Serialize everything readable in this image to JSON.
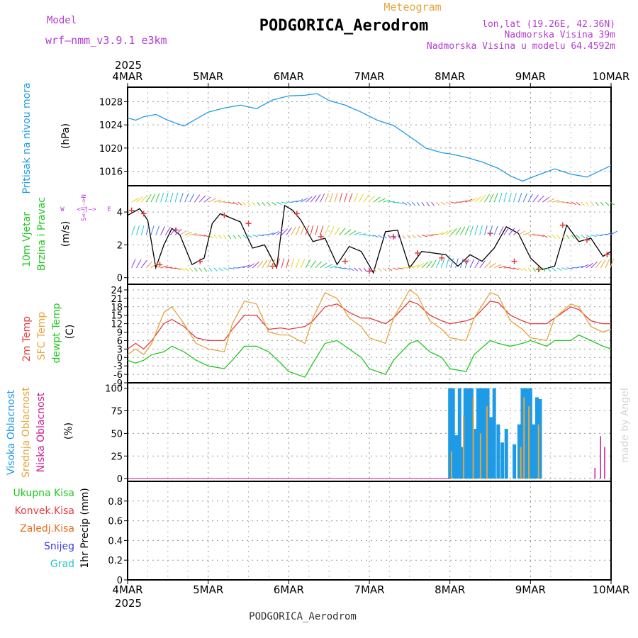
{
  "header": {
    "model_label": "Model",
    "model_name": "wrf–nmm_v3.9.1 e3km",
    "product": "Meteogram",
    "station": "PODGORICA_Aerodrom",
    "lonlat": "lon,lat (19.26E, 42.36N)",
    "elevation": "Nadmorska Visina 39m",
    "model_elevation": "Nadmorska Visina u modelu 64.4592m",
    "year_top": "2025",
    "year_bottom": "2025",
    "footer_station": "PODGORICA_Aerodrom",
    "credit": "made by Angel"
  },
  "colors": {
    "pressure": "#1e9be6",
    "wind_label": "#1ec81e",
    "temp2m": "#e63c3c",
    "sfc": "#e6a53c",
    "dewpt": "#1ec81e",
    "cloud_high": "#1e9be6",
    "cloud_mid": "#e6a53c",
    "cloud_low": "#c81e8c",
    "purple": "#b43cd2",
    "precip_total": "#1ec81e",
    "precip_conv": "#e63c3c",
    "precip_frz": "#e66e1e",
    "precip_snow": "#3c3ce6",
    "precip_grad": "#1ec8c8"
  },
  "panel_labels": {
    "pressure": [
      "Pritisak na nivou mora",
      "(hPa)"
    ],
    "wind": [
      "10m Vjetar",
      "Brzina i Pravac",
      "(m/s)"
    ],
    "temp": [
      "2m Temp",
      "SFC Temp",
      "dewpt Temp",
      "(C)"
    ],
    "cloud": [
      "Visoka Oblacnost",
      "Srednja Oblacnost",
      "Niska Oblacnost",
      "(%)"
    ],
    "precip": [
      "Ukupna Kisa",
      "Konvek.Kisa",
      "Zaledj.Kisa",
      "Snijeg",
      "Grad",
      "1hr Precip (mm)"
    ],
    "compass": [
      "W",
      "<–|–>",
      "E",
      "S<–|–>N"
    ]
  },
  "chart_data": [
    {
      "type": "line",
      "title": "Pritisak na nivou mora",
      "ylabel": "(hPa)",
      "x_categories": [
        "4MAR",
        "5MAR",
        "6MAR",
        "7MAR",
        "8MAR",
        "9MAR",
        "10MAR"
      ],
      "yticks": [
        1016,
        1020,
        1024,
        1028
      ],
      "ylim": [
        1013.5,
        1030.5
      ],
      "series": [
        {
          "name": "MSLP",
          "x": [
            0,
            0.1,
            0.2,
            0.35,
            0.5,
            0.7,
            0.9,
            1.0,
            1.2,
            1.4,
            1.6,
            1.8,
            2.0,
            2.2,
            2.35,
            2.5,
            2.7,
            2.9,
            3.1,
            3.3,
            3.5,
            3.7,
            3.9,
            4.0,
            4.2,
            4.4,
            4.6,
            4.75,
            4.9,
            5.1,
            5.3,
            5.5,
            5.7,
            5.9,
            6.0
          ],
          "y": [
            1025.2,
            1024.8,
            1025.4,
            1025.8,
            1024.8,
            1023.8,
            1025.4,
            1026.2,
            1026.9,
            1027.4,
            1026.8,
            1028.3,
            1029.0,
            1029.1,
            1029.4,
            1028.2,
            1027.4,
            1026.2,
            1024.8,
            1023.9,
            1022.0,
            1020.0,
            1019.2,
            1019.0,
            1018.4,
            1017.6,
            1016.5,
            1015.2,
            1014.3,
            1015.4,
            1016.4,
            1015.5,
            1015.0,
            1016.3,
            1017.0
          ]
        }
      ]
    },
    {
      "type": "line",
      "title": "10m Vjetar Brzina i Pravac",
      "ylabel": "(m/s)",
      "x_categories": [
        "4MAR",
        "5MAR",
        "6MAR",
        "7MAR",
        "8MAR",
        "9MAR",
        "10MAR"
      ],
      "yticks": [
        0,
        2,
        4
      ],
      "ylim": [
        -0.4,
        5.6
      ],
      "series": [
        {
          "name": "Wind speed (black)",
          "x": [
            0,
            0.15,
            0.25,
            0.35,
            0.45,
            0.55,
            0.65,
            0.8,
            0.95,
            1.05,
            1.15,
            1.25,
            1.4,
            1.55,
            1.7,
            1.85,
            1.95,
            2.05,
            2.15,
            2.3,
            2.45,
            2.6,
            2.75,
            2.9,
            3.05,
            3.2,
            3.35,
            3.5,
            3.65,
            3.8,
            3.95,
            4.1,
            4.25,
            4.4,
            4.55,
            4.7,
            4.85,
            5.0,
            5.15,
            5.3,
            5.45,
            5.6,
            5.75,
            5.9,
            6.0
          ],
          "y": [
            3.8,
            4.2,
            3.5,
            0.6,
            2.0,
            3.0,
            2.6,
            0.8,
            1.2,
            3.3,
            3.9,
            3.7,
            3.4,
            1.8,
            2.0,
            0.6,
            4.4,
            4.1,
            3.5,
            2.2,
            2.4,
            0.8,
            1.9,
            1.6,
            0.3,
            2.8,
            2.9,
            0.6,
            1.6,
            1.5,
            1.4,
            0.7,
            1.4,
            1.0,
            1.8,
            3.1,
            2.7,
            1.2,
            0.5,
            0.7,
            3.2,
            2.2,
            2.4,
            1.3,
            1.6
          ]
        },
        {
          "name": "Gust markers (+)",
          "x": [
            0.05,
            0.2,
            0.4,
            0.6,
            0.9,
            1.2,
            1.5,
            1.8,
            2.1,
            2.4,
            2.7,
            3.0,
            3.3,
            3.6,
            3.9,
            4.2,
            4.5,
            4.8,
            5.1,
            5.4,
            5.7,
            5.95
          ],
          "y": [
            4.1,
            3.9,
            0.8,
            2.9,
            1.0,
            3.8,
            3.3,
            0.7,
            3.9,
            2.5,
            1.0,
            0.4,
            2.5,
            1.5,
            1.2,
            1.0,
            2.7,
            1.0,
            0.5,
            3.2,
            2.3,
            1.4
          ]
        }
      ]
    },
    {
      "type": "line",
      "title": "2m Temp / SFC Temp / dewpt Temp",
      "ylabel": "(C)",
      "x_categories": [
        "4MAR",
        "5MAR",
        "6MAR",
        "7MAR",
        "8MAR",
        "9MAR",
        "10MAR"
      ],
      "yticks": [
        -9,
        -6,
        -3,
        0,
        3,
        6,
        9,
        12,
        15,
        18,
        21,
        24
      ],
      "ylim": [
        -9,
        26
      ],
      "series": [
        {
          "name": "2m Temp",
          "x": [
            0,
            0.1,
            0.2,
            0.3,
            0.45,
            0.55,
            0.7,
            0.85,
            1.0,
            1.2,
            1.3,
            1.45,
            1.6,
            1.75,
            1.9,
            2.0,
            2.2,
            2.3,
            2.45,
            2.6,
            2.75,
            2.9,
            3.0,
            3.2,
            3.3,
            3.5,
            3.6,
            3.75,
            3.9,
            4.0,
            4.2,
            4.3,
            4.5,
            4.6,
            4.75,
            4.9,
            5.0,
            5.2,
            5.3,
            5.5,
            5.6,
            5.75,
            5.9,
            6.0
          ],
          "y": [
            3,
            5,
            3,
            6,
            12,
            13.5,
            11,
            7,
            6,
            6,
            10,
            15,
            15,
            10,
            10.5,
            10,
            11,
            13,
            18,
            19,
            16,
            14,
            14,
            12,
            14,
            20,
            19,
            15,
            13,
            12,
            13,
            14,
            20,
            19.5,
            15,
            13,
            12,
            12,
            14,
            18,
            17,
            13,
            12,
            12
          ]
        },
        {
          "name": "SFC Temp",
          "x": [
            0,
            0.1,
            0.2,
            0.3,
            0.45,
            0.55,
            0.7,
            0.85,
            1.0,
            1.2,
            1.3,
            1.45,
            1.6,
            1.75,
            1.9,
            2.0,
            2.2,
            2.3,
            2.45,
            2.6,
            2.75,
            2.9,
            3.0,
            3.2,
            3.3,
            3.5,
            3.6,
            3.75,
            3.9,
            4.0,
            4.2,
            4.3,
            4.5,
            4.6,
            4.75,
            4.9,
            5.0,
            5.2,
            5.3,
            5.5,
            5.6,
            5.75,
            5.9,
            6.0
          ],
          "y": [
            1,
            3,
            1,
            5,
            16,
            18,
            12,
            5,
            3,
            2,
            12,
            20,
            19,
            9,
            8,
            8,
            5,
            14,
            23,
            21,
            14,
            11,
            7,
            5,
            14,
            24,
            22,
            13,
            10,
            7,
            6,
            14,
            23,
            22,
            13,
            10,
            7,
            6,
            14,
            19,
            18,
            11,
            9,
            10
          ]
        },
        {
          "name": "dewpt Temp",
          "x": [
            0,
            0.1,
            0.2,
            0.3,
            0.45,
            0.55,
            0.7,
            0.85,
            1.0,
            1.2,
            1.3,
            1.45,
            1.6,
            1.75,
            1.9,
            2.0,
            2.2,
            2.3,
            2.45,
            2.6,
            2.75,
            2.9,
            3.0,
            3.2,
            3.3,
            3.5,
            3.6,
            3.75,
            3.9,
            4.0,
            4.2,
            4.3,
            4.5,
            4.6,
            4.75,
            4.9,
            5.0,
            5.2,
            5.3,
            5.5,
            5.6,
            5.75,
            5.9,
            6.0
          ],
          "y": [
            -1,
            -2,
            -1,
            1,
            2,
            4,
            2,
            -1,
            -3,
            -4,
            -1,
            4,
            4,
            2,
            -2,
            -5,
            -7,
            -2,
            5,
            6,
            3,
            0,
            -4,
            -6,
            -1,
            5,
            6,
            2,
            0,
            -4,
            -5,
            1,
            6,
            5,
            4,
            5,
            6,
            4,
            6,
            6,
            8,
            6,
            4,
            3
          ]
        }
      ]
    },
    {
      "type": "bar",
      "title": "Visoka / Srednja / Niska Oblacnost",
      "ylabel": "(%)",
      "x_categories": [
        "4MAR",
        "5MAR",
        "6MAR",
        "7MAR",
        "8MAR",
        "9MAR",
        "10MAR"
      ],
      "yticks": [
        0,
        25,
        50,
        75,
        100
      ],
      "ylim": [
        -3,
        106
      ],
      "series": [
        {
          "name": "Visoka Oblacnost",
          "x": [
            4.0,
            4.04,
            4.08,
            4.12,
            4.15,
            4.19,
            4.23,
            4.27,
            4.31,
            4.35,
            4.39,
            4.43,
            4.47,
            4.51,
            4.55,
            4.6,
            4.65,
            4.7,
            4.8,
            4.86,
            4.9,
            4.93,
            4.96,
            5.0,
            5.04,
            5.08,
            5.12
          ],
          "y": [
            100,
            100,
            48,
            100,
            35,
            100,
            100,
            100,
            55,
            100,
            100,
            100,
            100,
            68,
            100,
            60,
            40,
            55,
            38,
            60,
            100,
            100,
            100,
            100,
            60,
            90,
            88
          ]
        },
        {
          "name": "Srednja Oblacnost",
          "x": [
            4.02,
            4.17,
            4.29,
            4.38,
            4.46,
            4.88,
            4.92,
            4.98,
            5.1
          ],
          "y": [
            30,
            70,
            90,
            50,
            80,
            35,
            90,
            80,
            60
          ]
        },
        {
          "name": "Niska Oblacnost",
          "x": [
            5.8,
            5.87,
            5.92
          ],
          "y": [
            12,
            47,
            35
          ]
        }
      ]
    },
    {
      "type": "bar",
      "title": "1hr Precip",
      "ylabel": "1hr Precip (mm)",
      "x_categories": [
        "4MAR",
        "5MAR",
        "6MAR",
        "7MAR",
        "8MAR",
        "9MAR",
        "10MAR"
      ],
      "yticks": [
        0,
        0.2,
        0.4,
        0.6,
        0.8
      ],
      "ylim": [
        0,
        1.0
      ],
      "series": [
        {
          "name": "Ukupna Kisa",
          "values": []
        },
        {
          "name": "Konvek.Kisa",
          "values": []
        },
        {
          "name": "Zaledj.Kisa",
          "values": []
        },
        {
          "name": "Snijeg",
          "values": []
        },
        {
          "name": "Grad",
          "values": []
        }
      ]
    }
  ]
}
